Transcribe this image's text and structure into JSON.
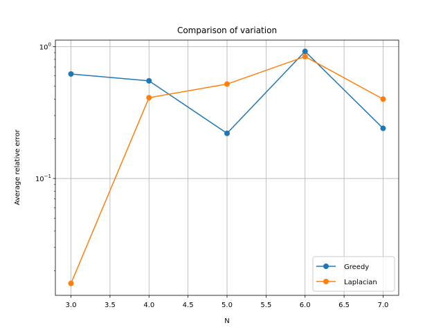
{
  "chart_data": {
    "type": "line",
    "title": "Comparison of variation",
    "xlabel": "N",
    "ylabel": "Average relative error",
    "x": [
      3.0,
      4.0,
      5.0,
      6.0,
      7.0
    ],
    "xlim": [
      2.8,
      7.2
    ],
    "ylim": [
      0.013,
      1.12
    ],
    "yscale": "log",
    "x_ticks": [
      3.0,
      3.5,
      4.0,
      4.5,
      5.0,
      5.5,
      6.0,
      6.5,
      7.0
    ],
    "x_tick_labels": [
      "3.0",
      "3.5",
      "4.0",
      "4.5",
      "5.0",
      "5.5",
      "6.0",
      "6.5",
      "7.0"
    ],
    "y_major_ticks": [
      0.1,
      1.0
    ],
    "y_major_tick_labels": [
      {
        "base": "10",
        "exp": "−1"
      },
      {
        "base": "10",
        "exp": "0"
      }
    ],
    "grid": true,
    "legend_placement": "lower-right",
    "series": [
      {
        "name": "Greedy",
        "color": "#1f77b4",
        "marker": "circle",
        "values": [
          0.62,
          0.55,
          0.22,
          0.92,
          0.24
        ]
      },
      {
        "name": "Laplacian",
        "color": "#ff7f0e",
        "marker": "circle",
        "values": [
          0.016,
          0.41,
          0.52,
          0.84,
          0.4
        ]
      }
    ]
  }
}
